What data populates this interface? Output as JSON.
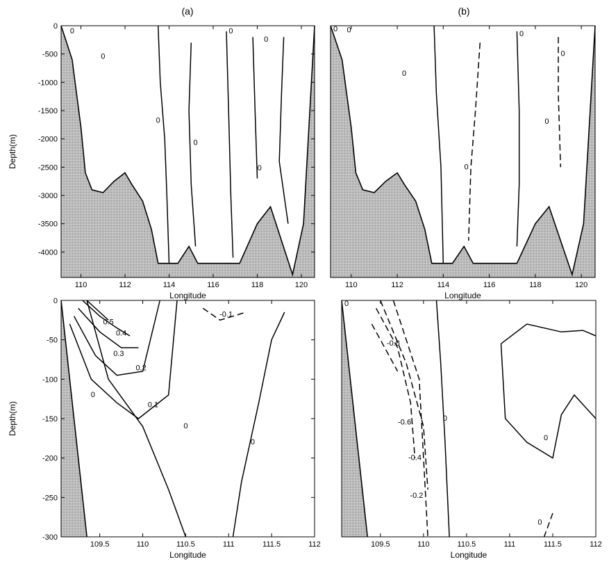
{
  "panel_labels": [
    "(a)",
    "(b)"
  ],
  "chart_data": [
    {
      "type": "contour",
      "panel": "(a)",
      "xlabel": "Longitude",
      "ylabel": "Depth(m)",
      "xlim": [
        109.1,
        120.6
      ],
      "ylim": [
        -4450,
        0
      ],
      "xticks": [
        110,
        112,
        114,
        116,
        118,
        120
      ],
      "yticks": [
        0,
        -500,
        -1000,
        -1500,
        -2000,
        -2500,
        -3000,
        -3500,
        -4000
      ],
      "land_fill": true,
      "bathymetry": [
        [
          109.1,
          0
        ],
        [
          109.6,
          -600
        ],
        [
          110.0,
          -1800
        ],
        [
          110.2,
          -2600
        ],
        [
          110.5,
          -2900
        ],
        [
          111.0,
          -2950
        ],
        [
          111.5,
          -2750
        ],
        [
          112.0,
          -2600
        ],
        [
          112.3,
          -2800
        ],
        [
          112.8,
          -3100
        ],
        [
          113.2,
          -3600
        ],
        [
          113.5,
          -4200
        ],
        [
          114.4,
          -4200
        ],
        [
          114.9,
          -3900
        ],
        [
          115.3,
          -4200
        ],
        [
          117.2,
          -4200
        ],
        [
          118.0,
          -3500
        ],
        [
          118.6,
          -3200
        ],
        [
          119.1,
          -3800
        ],
        [
          119.6,
          -4400
        ],
        [
          120.1,
          -3500
        ],
        [
          120.6,
          0
        ]
      ],
      "contours": [
        {
          "level": 0,
          "style": "solid",
          "points": [
            [
              113.5,
              0
            ],
            [
              113.6,
              -1000
            ],
            [
              113.8,
              -2000
            ],
            [
              113.9,
              -3000
            ],
            [
              114.0,
              -4200
            ]
          ]
        },
        {
          "level": 0,
          "style": "solid",
          "points": [
            [
              115.0,
              -300
            ],
            [
              114.9,
              -1500
            ],
            [
              115.0,
              -2800
            ],
            [
              115.2,
              -3900
            ]
          ]
        },
        {
          "level": 0,
          "style": "solid",
          "points": [
            [
              116.6,
              -100
            ],
            [
              116.7,
              -1500
            ],
            [
              116.8,
              -3000
            ],
            [
              116.9,
              -4100
            ]
          ]
        },
        {
          "level": 0,
          "style": "solid",
          "points": [
            [
              117.8,
              -200
            ],
            [
              117.9,
              -1500
            ],
            [
              118.0,
              -2700
            ]
          ]
        },
        {
          "level": 0,
          "style": "solid",
          "points": [
            [
              119.2,
              -200
            ],
            [
              119.1,
              -1200
            ],
            [
              119.0,
              -2400
            ],
            [
              119.4,
              -3500
            ]
          ]
        }
      ],
      "annotations": [
        {
          "text": "0",
          "x": 109.6,
          "y": -100
        },
        {
          "text": "0",
          "x": 111.0,
          "y": -550
        },
        {
          "text": "0",
          "x": 113.5,
          "y": -1680
        },
        {
          "text": "0",
          "x": 115.2,
          "y": -2070
        },
        {
          "text": "0",
          "x": 116.8,
          "y": -100
        },
        {
          "text": "0",
          "x": 118.4,
          "y": -250
        },
        {
          "text": "0",
          "x": 118.1,
          "y": -2520
        }
      ]
    },
    {
      "type": "contour",
      "panel": "(b)",
      "xlabel": "Longitude",
      "ylabel": "",
      "xlim": [
        109.1,
        120.6
      ],
      "ylim": [
        -4450,
        0
      ],
      "xticks": [
        110,
        112,
        114,
        116,
        118,
        120
      ],
      "yticks": [],
      "land_fill": true,
      "bathymetry": [
        [
          109.1,
          0
        ],
        [
          109.6,
          -600
        ],
        [
          110.0,
          -1800
        ],
        [
          110.2,
          -2600
        ],
        [
          110.5,
          -2900
        ],
        [
          111.0,
          -2950
        ],
        [
          111.5,
          -2750
        ],
        [
          112.0,
          -2600
        ],
        [
          112.3,
          -2800
        ],
        [
          112.8,
          -3100
        ],
        [
          113.2,
          -3600
        ],
        [
          113.5,
          -4200
        ],
        [
          114.4,
          -4200
        ],
        [
          114.9,
          -3900
        ],
        [
          115.3,
          -4200
        ],
        [
          117.2,
          -4200
        ],
        [
          118.0,
          -3500
        ],
        [
          118.6,
          -3200
        ],
        [
          119.1,
          -3800
        ],
        [
          119.6,
          -4400
        ],
        [
          120.1,
          -3500
        ],
        [
          120.6,
          0
        ]
      ],
      "contours": [
        {
          "level": 0,
          "style": "solid",
          "points": [
            [
              113.6,
              0
            ],
            [
              113.7,
              -1200
            ],
            [
              113.9,
              -2500
            ],
            [
              114.0,
              -4200
            ]
          ]
        },
        {
          "level": 0,
          "style": "solid",
          "points": [
            [
              117.2,
              -100
            ],
            [
              117.3,
              -1500
            ],
            [
              117.3,
              -2800
            ],
            [
              117.2,
              -3900
            ]
          ]
        },
        {
          "level": 0,
          "style": "dashed",
          "points": [
            [
              115.6,
              -300
            ],
            [
              115.4,
              -1500
            ],
            [
              115.2,
              -2500
            ],
            [
              115.1,
              -3800
            ]
          ]
        },
        {
          "level": 0,
          "style": "dashed",
          "points": [
            [
              119.0,
              -200
            ],
            [
              119.0,
              -1200
            ],
            [
              119.1,
              -2500
            ]
          ]
        }
      ],
      "annotations": [
        {
          "text": "0",
          "x": 109.9,
          "y": -80
        },
        {
          "text": "0",
          "x": 112.3,
          "y": -850
        },
        {
          "text": "0",
          "x": 115.0,
          "y": -2500
        },
        {
          "text": "0",
          "x": 117.4,
          "y": -150
        },
        {
          "text": "0",
          "x": 118.5,
          "y": -1700
        },
        {
          "text": "0",
          "x": 119.2,
          "y": -500
        }
      ]
    },
    {
      "type": "contour",
      "panel": "",
      "xlabel": "Longitude",
      "ylabel": "Depth(m)",
      "xlim": [
        109.05,
        112.0
      ],
      "ylim": [
        -300,
        0
      ],
      "xticks": [
        109.5,
        110,
        110.5,
        111,
        111.5,
        112
      ],
      "yticks": [
        0,
        -50,
        -100,
        -150,
        -200,
        -250,
        -300
      ],
      "land_fill": true,
      "bathymetry": [
        [
          109.05,
          0
        ],
        [
          109.35,
          -300
        ]
      ],
      "contours": [
        {
          "level": 0.5,
          "style": "solid",
          "points": [
            [
              109.35,
              0
            ],
            [
              109.5,
              -15
            ],
            [
              109.6,
              -25
            ]
          ]
        },
        {
          "level": 0.4,
          "style": "solid",
          "points": [
            [
              109.3,
              0
            ],
            [
              109.5,
              -20
            ],
            [
              109.7,
              -35
            ],
            [
              109.85,
              -45
            ]
          ]
        },
        {
          "level": 0.3,
          "style": "solid",
          "points": [
            [
              109.25,
              -10
            ],
            [
              109.5,
              -40
            ],
            [
              109.75,
              -60
            ],
            [
              109.95,
              -60
            ]
          ]
        },
        {
          "level": 0.2,
          "style": "solid",
          "points": [
            [
              109.2,
              -20
            ],
            [
              109.45,
              -70
            ],
            [
              109.7,
              -95
            ],
            [
              110.0,
              -90
            ],
            [
              110.2,
              0
            ]
          ]
        },
        {
          "level": 0.1,
          "style": "solid",
          "points": [
            [
              109.15,
              -30
            ],
            [
              109.4,
              -100
            ],
            [
              109.7,
              -130
            ],
            [
              109.95,
              -150
            ],
            [
              110.3,
              -120
            ],
            [
              110.4,
              0
            ]
          ]
        },
        {
          "level": 0,
          "style": "solid",
          "points": [
            [
              109.35,
              0
            ],
            [
              109.6,
              -100
            ],
            [
              110.0,
              -160
            ],
            [
              110.3,
              -240
            ],
            [
              110.5,
              -300
            ]
          ]
        },
        {
          "level": 0,
          "style": "solid",
          "points": [
            [
              111.05,
              -300
            ],
            [
              111.15,
              -230
            ],
            [
              111.35,
              -130
            ],
            [
              111.5,
              -50
            ],
            [
              111.65,
              -15
            ]
          ]
        },
        {
          "level": -0.1,
          "style": "dashed",
          "points": [
            [
              110.7,
              -10
            ],
            [
              110.9,
              -25
            ],
            [
              111.2,
              -15
            ]
          ]
        }
      ],
      "annotations": [
        {
          "text": "0.5",
          "x": 109.6,
          "y": -28
        },
        {
          "text": "0.4",
          "x": 109.75,
          "y": -42
        },
        {
          "text": "0.3",
          "x": 109.72,
          "y": -68
        },
        {
          "text": "0.2",
          "x": 109.98,
          "y": -86
        },
        {
          "text": "0.1",
          "x": 110.12,
          "y": -133
        },
        {
          "text": "-0.1",
          "x": 110.97,
          "y": -18
        },
        {
          "text": "0",
          "x": 109.42,
          "y": -120
        },
        {
          "text": "0",
          "x": 110.5,
          "y": -160
        },
        {
          "text": "0",
          "x": 111.28,
          "y": -180
        }
      ]
    },
    {
      "type": "contour",
      "panel": "",
      "xlabel": "Longitude",
      "ylabel": "",
      "xlim": [
        109.05,
        112.0
      ],
      "ylim": [
        -300,
        0
      ],
      "xticks": [
        109.5,
        110,
        110.5,
        111,
        111.5,
        112
      ],
      "yticks": [],
      "land_fill": true,
      "bathymetry": [
        [
          109.05,
          0
        ],
        [
          109.35,
          -300
        ]
      ],
      "contours": [
        {
          "level": -0.8,
          "style": "dashed",
          "points": [
            [
              109.4,
              -30
            ],
            [
              109.6,
              -70
            ],
            [
              109.7,
              -90
            ]
          ]
        },
        {
          "level": -0.6,
          "style": "dashed",
          "points": [
            [
              109.45,
              -10
            ],
            [
              109.7,
              -60
            ],
            [
              109.85,
              -130
            ],
            [
              109.9,
              -200
            ]
          ]
        },
        {
          "level": -0.4,
          "style": "dashed",
          "points": [
            [
              109.5,
              0
            ],
            [
              109.8,
              -80
            ],
            [
              110.0,
              -160
            ],
            [
              110.05,
              -240
            ]
          ]
        },
        {
          "level": -0.2,
          "style": "dashed",
          "points": [
            [
              109.65,
              0
            ],
            [
              109.95,
              -100
            ],
            [
              110.0,
              -200
            ],
            [
              110.05,
              -300
            ]
          ]
        },
        {
          "level": 0,
          "style": "solid",
          "points": [
            [
              110.15,
              0
            ],
            [
              110.2,
              -80
            ],
            [
              110.25,
              -180
            ],
            [
              110.3,
              -300
            ]
          ]
        },
        {
          "level": 0,
          "style": "solid",
          "points": [
            [
              110.9,
              -55
            ],
            [
              111.2,
              -30
            ],
            [
              111.6,
              -40
            ],
            [
              111.85,
              -38
            ],
            [
              112.0,
              -45
            ]
          ]
        },
        {
          "level": 0,
          "style": "solid",
          "points": [
            [
              110.9,
              -55
            ],
            [
              110.95,
              -150
            ],
            [
              111.2,
              -180
            ],
            [
              111.5,
              -200
            ],
            [
              111.6,
              -145
            ],
            [
              111.75,
              -120
            ],
            [
              112.0,
              -150
            ]
          ]
        },
        {
          "level": 0,
          "style": "dashed",
          "points": [
            [
              111.5,
              -270
            ],
            [
              111.4,
              -300
            ]
          ]
        }
      ],
      "annotations": [
        {
          "text": "-0.8",
          "x": 109.65,
          "y": -55
        },
        {
          "text": "-0.6",
          "x": 109.78,
          "y": -155
        },
        {
          "text": "-0.4",
          "x": 109.9,
          "y": -200
        },
        {
          "text": "-0.2",
          "x": 109.92,
          "y": -248
        },
        {
          "text": "0",
          "x": 110.25,
          "y": -150
        },
        {
          "text": "0",
          "x": 111.42,
          "y": -175
        },
        {
          "text": "0",
          "x": 111.35,
          "y": -282
        }
      ]
    }
  ]
}
